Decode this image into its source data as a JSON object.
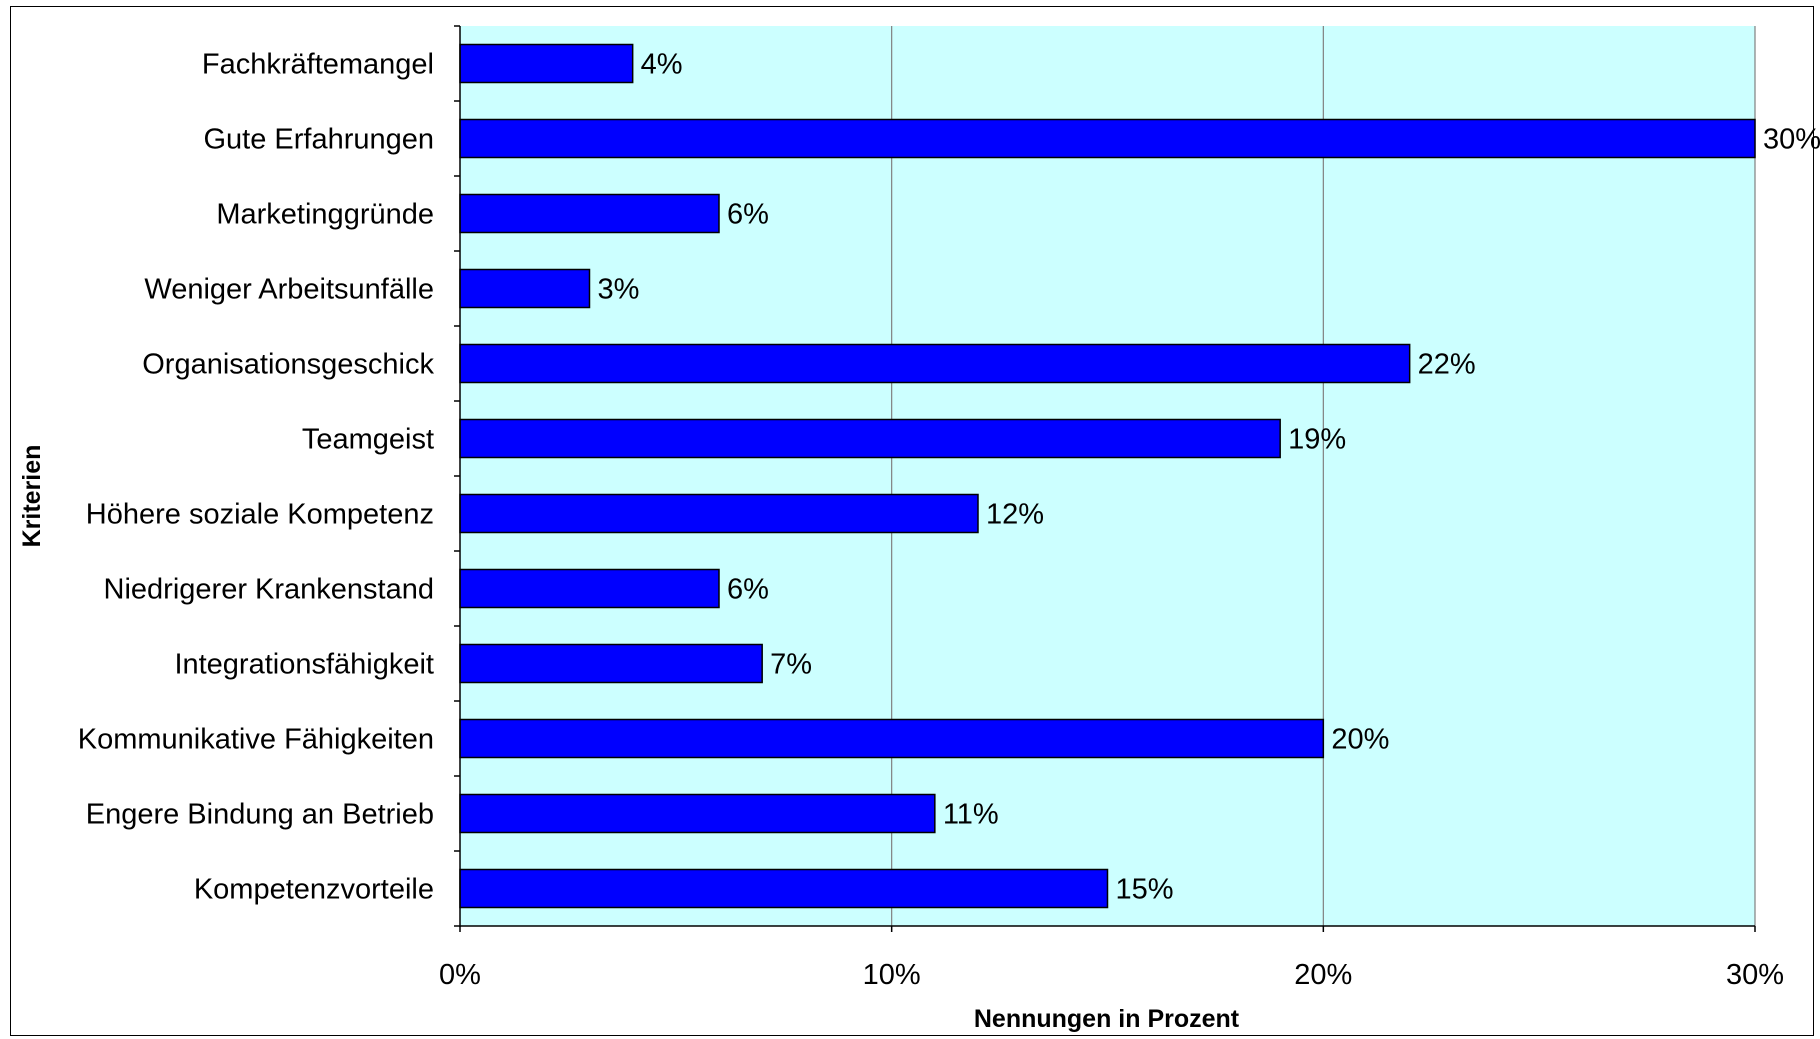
{
  "chart_data": {
    "type": "bar",
    "orientation": "horizontal",
    "categories": [
      "Fachkräftemangel",
      "Gute Erfahrungen",
      "Marketinggründe",
      "Weniger Arbeitsunfälle",
      "Organisationsgeschick",
      "Teamgeist",
      "Höhere soziale Kompetenz",
      "Niedrigerer Krankenstand",
      "Integrationsfähigkeit",
      "Kommunikative Fähigkeiten",
      "Engere Bindung an Betrieb",
      "Kompetenzvorteile"
    ],
    "values": [
      4,
      30,
      6,
      3,
      22,
      19,
      12,
      6,
      7,
      20,
      11,
      15
    ],
    "data_labels": [
      "4%",
      "30%",
      "6%",
      "3%",
      "22%",
      "19%",
      "12%",
      "6%",
      "7%",
      "20%",
      "11%",
      "15%"
    ],
    "xlabel": "Nennungen in Prozent",
    "ylabel": "Kriterien",
    "xlim": [
      0,
      30
    ],
    "x_ticks": [
      0,
      10,
      20,
      30
    ],
    "x_tick_labels": [
      "0%",
      "10%",
      "20%",
      "30%"
    ],
    "grid": "vertical major gridlines",
    "legend": "none",
    "colors": {
      "bar_fill": "#0000FF",
      "bar_edge": "#000000",
      "plot_background": "#CCFFFF",
      "gridline": "#808080"
    }
  }
}
